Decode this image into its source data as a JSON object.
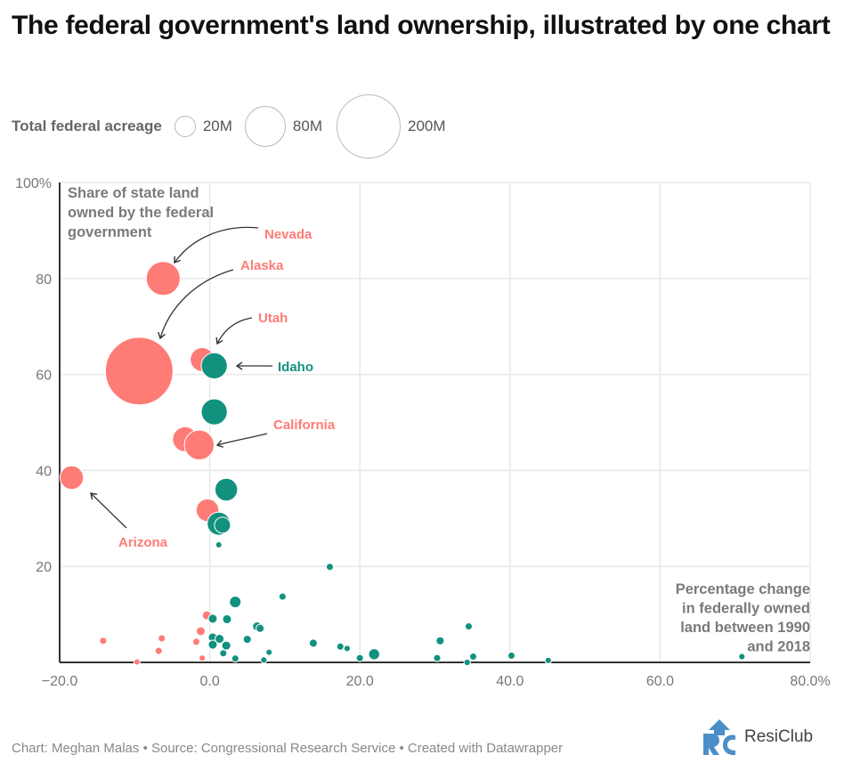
{
  "title": "The federal government's land ownership, illustrated by one chart",
  "legend": {
    "title": "Total federal acreage",
    "items": [
      {
        "label": "20M",
        "value": 20
      },
      {
        "label": "80M",
        "value": 80
      },
      {
        "label": "200M",
        "value": 200
      }
    ]
  },
  "colors": {
    "red": "#ff7b76",
    "teal": "#12917f",
    "annotation": "#7a7a7a",
    "grid": "#e8e8e8",
    "axis": "#333333"
  },
  "chart_data": {
    "type": "scatter",
    "subtype": "bubble",
    "xlim": [
      -20,
      80
    ],
    "ylim": [
      0,
      100
    ],
    "grid": true,
    "x_ticks": [
      "−20.0",
      "0.0",
      "20.0",
      "40.0",
      "60.0",
      "80.0%"
    ],
    "x_tick_values": [
      -20,
      0,
      20,
      40,
      60,
      80
    ],
    "y_ticks": [
      "100%",
      "80",
      "60",
      "40",
      "20"
    ],
    "y_tick_values": [
      100,
      80,
      60,
      40,
      20
    ],
    "ylabel": "Share of state land owned by the federal government",
    "xlabel": "Percentage change in federally owned land between 1990 and 2018",
    "size_unit": "million acres",
    "points": [
      {
        "x": -9.4,
        "y": 60.7,
        "size": 222,
        "color": "red",
        "label": "Alaska"
      },
      {
        "x": -6.2,
        "y": 80.0,
        "size": 56,
        "color": "red",
        "label": "Nevada"
      },
      {
        "x": -1.0,
        "y": 63.1,
        "size": 28,
        "color": "red",
        "label": "Utah"
      },
      {
        "x": 0.6,
        "y": 61.8,
        "size": 33,
        "color": "teal",
        "label": "Idaho"
      },
      {
        "x": 0.6,
        "y": 52.2,
        "size": 33,
        "color": "teal"
      },
      {
        "x": -3.3,
        "y": 46.5,
        "size": 30,
        "color": "red"
      },
      {
        "x": -1.4,
        "y": 45.3,
        "size": 43,
        "color": "red",
        "label": "California"
      },
      {
        "x": 2.2,
        "y": 36.0,
        "size": 25,
        "color": "teal"
      },
      {
        "x": -18.4,
        "y": 38.5,
        "size": 27,
        "color": "red",
        "label": "Arizona"
      },
      {
        "x": -0.3,
        "y": 31.7,
        "size": 25,
        "color": "red"
      },
      {
        "x": 1.2,
        "y": 28.9,
        "size": 26,
        "color": "teal"
      },
      {
        "x": 1.7,
        "y": 28.6,
        "size": 12.5,
        "color": "teal"
      },
      {
        "x": 1.2,
        "y": 24.5,
        "size": 1.9,
        "color": "teal"
      },
      {
        "x": 16.0,
        "y": 19.9,
        "size": 2.5,
        "color": "teal"
      },
      {
        "x": 3.4,
        "y": 12.6,
        "size": 6.5,
        "color": "teal"
      },
      {
        "x": 9.7,
        "y": 13.7,
        "size": 2.5,
        "color": "teal"
      },
      {
        "x": -0.4,
        "y": 9.8,
        "size": 3.9,
        "color": "red"
      },
      {
        "x": 0.4,
        "y": 9.1,
        "size": 3.9,
        "color": "teal"
      },
      {
        "x": 2.3,
        "y": 9.0,
        "size": 3.9,
        "color": "teal"
      },
      {
        "x": 6.3,
        "y": 7.5,
        "size": 3.9,
        "color": "teal"
      },
      {
        "x": 6.7,
        "y": 7.1,
        "size": 3.2,
        "color": "teal"
      },
      {
        "x": -1.2,
        "y": 6.5,
        "size": 3.9,
        "color": "red"
      },
      {
        "x": -14.2,
        "y": 4.5,
        "size": 2.5,
        "color": "red"
      },
      {
        "x": -6.4,
        "y": 5.0,
        "size": 2.5,
        "color": "red"
      },
      {
        "x": -1.8,
        "y": 4.3,
        "size": 2.5,
        "color": "red"
      },
      {
        "x": 0.4,
        "y": 5.2,
        "size": 3.9,
        "color": "teal"
      },
      {
        "x": 1.3,
        "y": 4.9,
        "size": 3.9,
        "color": "teal"
      },
      {
        "x": 5.0,
        "y": 4.8,
        "size": 3.2,
        "color": "teal"
      },
      {
        "x": 0.4,
        "y": 3.7,
        "size": 3.9,
        "color": "teal"
      },
      {
        "x": 2.2,
        "y": 3.5,
        "size": 3.9,
        "color": "teal"
      },
      {
        "x": 13.8,
        "y": 4.0,
        "size": 3.2,
        "color": "teal"
      },
      {
        "x": 17.4,
        "y": 3.3,
        "size": 2.5,
        "color": "teal"
      },
      {
        "x": 18.3,
        "y": 2.9,
        "size": 2.0,
        "color": "teal"
      },
      {
        "x": -6.8,
        "y": 2.4,
        "size": 2.5,
        "color": "red"
      },
      {
        "x": 1.8,
        "y": 1.9,
        "size": 2.5,
        "color": "teal"
      },
      {
        "x": 7.9,
        "y": 2.1,
        "size": 1.9,
        "color": "teal"
      },
      {
        "x": 21.9,
        "y": 1.7,
        "size": 6.0,
        "color": "teal"
      },
      {
        "x": -1.0,
        "y": 0.9,
        "size": 1.9,
        "color": "red"
      },
      {
        "x": 3.4,
        "y": 0.8,
        "size": 2.5,
        "color": "teal"
      },
      {
        "x": 7.2,
        "y": 0.5,
        "size": 2.0,
        "color": "teal"
      },
      {
        "x": 20.0,
        "y": 0.9,
        "size": 2.5,
        "color": "teal"
      },
      {
        "x": -9.7,
        "y": 0.1,
        "size": 1.9,
        "color": "red"
      },
      {
        "x": 34.5,
        "y": 7.5,
        "size": 2.5,
        "color": "teal"
      },
      {
        "x": 30.7,
        "y": 4.5,
        "size": 3.2,
        "color": "teal"
      },
      {
        "x": 30.3,
        "y": 0.9,
        "size": 2.5,
        "color": "teal"
      },
      {
        "x": 34.3,
        "y": 0.0,
        "size": 2.0,
        "color": "teal"
      },
      {
        "x": 35.1,
        "y": 1.2,
        "size": 2.5,
        "color": "teal"
      },
      {
        "x": 40.2,
        "y": 1.4,
        "size": 2.5,
        "color": "teal"
      },
      {
        "x": 45.1,
        "y": 0.4,
        "size": 2.0,
        "color": "teal"
      },
      {
        "x": 70.9,
        "y": 1.2,
        "size": 2.0,
        "color": "teal"
      }
    ],
    "annotations": [
      "Nevada",
      "Alaska",
      "Utah",
      "Idaho",
      "California",
      "Arizona"
    ]
  },
  "ylabel_lines": [
    "Share of state land",
    "owned by the federal",
    "government"
  ],
  "xlabel_lines": [
    "Percentage change",
    "in federally owned",
    "land between 1990",
    "and 2018"
  ],
  "footer": "Chart: Meghan Malas • Source: Congressional Research Service • Created with Datawrapper",
  "logo": {
    "text": "ResiClub",
    "mark": "RC"
  }
}
